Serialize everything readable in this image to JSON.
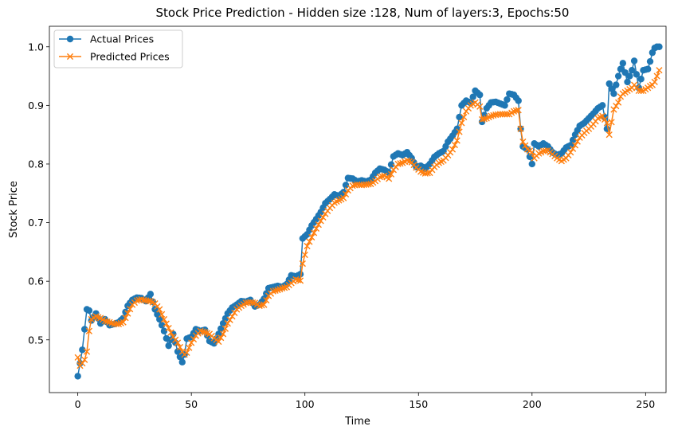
{
  "chart_data": {
    "type": "line",
    "title": "Stock Price Prediction - Hidden size :128, Num of layers:3, Epochs:50",
    "xlabel": "Time",
    "ylabel": "Stock Price",
    "xlim": [
      -12.5,
      259
    ],
    "ylim": [
      0.41,
      1.035
    ],
    "xticks": [
      0,
      50,
      100,
      150,
      200,
      250
    ],
    "yticks": [
      0.5,
      0.6,
      0.7,
      0.8,
      0.9,
      1.0
    ],
    "xtick_labels": [
      "0",
      "50",
      "100",
      "150",
      "200",
      "250"
    ],
    "ytick_labels": [
      "0.5",
      "0.6",
      "0.7",
      "0.8",
      "0.9",
      "1.0"
    ],
    "grid": false,
    "legend_position": "top-left",
    "series": [
      {
        "name": "Actual Prices",
        "color": "#1f77b4",
        "marker": "circle",
        "keypoints": [
          [
            0,
            0.438
          ],
          [
            1,
            0.46
          ],
          [
            2,
            0.483
          ],
          [
            3,
            0.518
          ],
          [
            4,
            0.552
          ],
          [
            5,
            0.55
          ],
          [
            6,
            0.533
          ],
          [
            8,
            0.545
          ],
          [
            10,
            0.528
          ],
          [
            12,
            0.535
          ],
          [
            14,
            0.525
          ],
          [
            16,
            0.527
          ],
          [
            18,
            0.53
          ],
          [
            20,
            0.537
          ],
          [
            22,
            0.558
          ],
          [
            24,
            0.568
          ],
          [
            26,
            0.572
          ],
          [
            28,
            0.571
          ],
          [
            30,
            0.566
          ],
          [
            32,
            0.578
          ],
          [
            34,
            0.552
          ],
          [
            36,
            0.535
          ],
          [
            38,
            0.515
          ],
          [
            40,
            0.49
          ],
          [
            42,
            0.51
          ],
          [
            44,
            0.48
          ],
          [
            46,
            0.462
          ],
          [
            47,
            0.475
          ],
          [
            48,
            0.502
          ],
          [
            50,
            0.505
          ],
          [
            52,
            0.518
          ],
          [
            54,
            0.515
          ],
          [
            56,
            0.517
          ],
          [
            58,
            0.498
          ],
          [
            60,
            0.494
          ],
          [
            62,
            0.51
          ],
          [
            64,
            0.528
          ],
          [
            66,
            0.545
          ],
          [
            68,
            0.555
          ],
          [
            70,
            0.56
          ],
          [
            72,
            0.566
          ],
          [
            74,
            0.565
          ],
          [
            76,
            0.568
          ],
          [
            78,
            0.557
          ],
          [
            80,
            0.56
          ],
          [
            82,
            0.57
          ],
          [
            84,
            0.588
          ],
          [
            86,
            0.59
          ],
          [
            88,
            0.592
          ],
          [
            90,
            0.59
          ],
          [
            92,
            0.595
          ],
          [
            94,
            0.61
          ],
          [
            96,
            0.608
          ],
          [
            98,
            0.612
          ],
          [
            99,
            0.673
          ],
          [
            101,
            0.68
          ],
          [
            103,
            0.695
          ],
          [
            105,
            0.706
          ],
          [
            107,
            0.718
          ],
          [
            109,
            0.733
          ],
          [
            111,
            0.74
          ],
          [
            113,
            0.748
          ],
          [
            115,
            0.745
          ],
          [
            117,
            0.752
          ],
          [
            119,
            0.776
          ],
          [
            121,
            0.775
          ],
          [
            123,
            0.77
          ],
          [
            125,
            0.772
          ],
          [
            127,
            0.77
          ],
          [
            129,
            0.773
          ],
          [
            131,
            0.785
          ],
          [
            133,
            0.792
          ],
          [
            135,
            0.79
          ],
          [
            137,
            0.785
          ],
          [
            139,
            0.813
          ],
          [
            141,
            0.818
          ],
          [
            143,
            0.815
          ],
          [
            145,
            0.82
          ],
          [
            147,
            0.81
          ],
          [
            149,
            0.795
          ],
          [
            151,
            0.797
          ],
          [
            153,
            0.792
          ],
          [
            155,
            0.8
          ],
          [
            157,
            0.812
          ],
          [
            159,
            0.818
          ],
          [
            161,
            0.822
          ],
          [
            163,
            0.838
          ],
          [
            165,
            0.848
          ],
          [
            167,
            0.86
          ],
          [
            169,
            0.9
          ],
          [
            171,
            0.908
          ],
          [
            173,
            0.904
          ],
          [
            175,
            0.925
          ],
          [
            177,
            0.918
          ],
          [
            178,
            0.872
          ],
          [
            180,
            0.895
          ],
          [
            182,
            0.905
          ],
          [
            184,
            0.906
          ],
          [
            186,
            0.903
          ],
          [
            188,
            0.9
          ],
          [
            190,
            0.92
          ],
          [
            192,
            0.918
          ],
          [
            194,
            0.908
          ],
          [
            195,
            0.86
          ],
          [
            196,
            0.83
          ],
          [
            198,
            0.825
          ],
          [
            200,
            0.8
          ],
          [
            201,
            0.835
          ],
          [
            203,
            0.83
          ],
          [
            205,
            0.835
          ],
          [
            207,
            0.83
          ],
          [
            209,
            0.82
          ],
          [
            211,
            0.815
          ],
          [
            213,
            0.818
          ],
          [
            215,
            0.828
          ],
          [
            217,
            0.832
          ],
          [
            219,
            0.85
          ],
          [
            221,
            0.865
          ],
          [
            223,
            0.87
          ],
          [
            225,
            0.878
          ],
          [
            227,
            0.886
          ],
          [
            229,
            0.895
          ],
          [
            231,
            0.9
          ],
          [
            233,
            0.86
          ],
          [
            234,
            0.937
          ],
          [
            236,
            0.92
          ],
          [
            238,
            0.95
          ],
          [
            239,
            0.962
          ],
          [
            240,
            0.972
          ],
          [
            242,
            0.94
          ],
          [
            244,
            0.96
          ],
          [
            245,
            0.976
          ],
          [
            247,
            0.93
          ],
          [
            249,
            0.96
          ],
          [
            251,
            0.962
          ],
          [
            252,
            0.975
          ],
          [
            253,
            0.99
          ],
          [
            254,
            0.998
          ],
          [
            255,
            1.0
          ],
          [
            256,
            1.0
          ]
        ]
      },
      {
        "name": "Predicted Prices",
        "color": "#ff7f0e",
        "marker": "x",
        "keypoints": [
          [
            0,
            0.47
          ],
          [
            1,
            0.456
          ],
          [
            2,
            0.46
          ],
          [
            3,
            0.466
          ],
          [
            4,
            0.48
          ],
          [
            5,
            0.515
          ],
          [
            6,
            0.535
          ],
          [
            8,
            0.54
          ],
          [
            10,
            0.537
          ],
          [
            12,
            0.532
          ],
          [
            14,
            0.53
          ],
          [
            16,
            0.527
          ],
          [
            18,
            0.527
          ],
          [
            20,
            0.53
          ],
          [
            22,
            0.545
          ],
          [
            24,
            0.56
          ],
          [
            26,
            0.567
          ],
          [
            28,
            0.569
          ],
          [
            30,
            0.567
          ],
          [
            32,
            0.566
          ],
          [
            34,
            0.562
          ],
          [
            36,
            0.552
          ],
          [
            38,
            0.535
          ],
          [
            40,
            0.52
          ],
          [
            42,
            0.505
          ],
          [
            44,
            0.495
          ],
          [
            46,
            0.48
          ],
          [
            47,
            0.475
          ],
          [
            48,
            0.478
          ],
          [
            50,
            0.495
          ],
          [
            52,
            0.507
          ],
          [
            54,
            0.515
          ],
          [
            56,
            0.513
          ],
          [
            58,
            0.51
          ],
          [
            60,
            0.503
          ],
          [
            62,
            0.497
          ],
          [
            64,
            0.51
          ],
          [
            66,
            0.528
          ],
          [
            68,
            0.54
          ],
          [
            70,
            0.552
          ],
          [
            72,
            0.558
          ],
          [
            74,
            0.563
          ],
          [
            76,
            0.564
          ],
          [
            78,
            0.563
          ],
          [
            80,
            0.558
          ],
          [
            82,
            0.56
          ],
          [
            84,
            0.575
          ],
          [
            86,
            0.583
          ],
          [
            88,
            0.585
          ],
          [
            90,
            0.588
          ],
          [
            92,
            0.59
          ],
          [
            94,
            0.597
          ],
          [
            96,
            0.603
          ],
          [
            98,
            0.601
          ],
          [
            99,
            0.63
          ],
          [
            101,
            0.66
          ],
          [
            103,
            0.675
          ],
          [
            105,
            0.69
          ],
          [
            107,
            0.703
          ],
          [
            109,
            0.715
          ],
          [
            111,
            0.725
          ],
          [
            113,
            0.734
          ],
          [
            115,
            0.738
          ],
          [
            117,
            0.742
          ],
          [
            119,
            0.755
          ],
          [
            121,
            0.763
          ],
          [
            123,
            0.765
          ],
          [
            125,
            0.764
          ],
          [
            127,
            0.765
          ],
          [
            129,
            0.766
          ],
          [
            131,
            0.771
          ],
          [
            133,
            0.778
          ],
          [
            135,
            0.78
          ],
          [
            137,
            0.775
          ],
          [
            139,
            0.79
          ],
          [
            141,
            0.8
          ],
          [
            143,
            0.802
          ],
          [
            145,
            0.806
          ],
          [
            147,
            0.803
          ],
          [
            149,
            0.794
          ],
          [
            151,
            0.787
          ],
          [
            153,
            0.784
          ],
          [
            155,
            0.785
          ],
          [
            157,
            0.795
          ],
          [
            159,
            0.802
          ],
          [
            161,
            0.806
          ],
          [
            163,
            0.815
          ],
          [
            165,
            0.825
          ],
          [
            167,
            0.84
          ],
          [
            169,
            0.87
          ],
          [
            171,
            0.89
          ],
          [
            173,
            0.9
          ],
          [
            175,
            0.905
          ],
          [
            177,
            0.898
          ],
          [
            178,
            0.876
          ],
          [
            180,
            0.878
          ],
          [
            182,
            0.882
          ],
          [
            184,
            0.884
          ],
          [
            186,
            0.885
          ],
          [
            188,
            0.885
          ],
          [
            190,
            0.885
          ],
          [
            192,
            0.89
          ],
          [
            194,
            0.892
          ],
          [
            195,
            0.86
          ],
          [
            196,
            0.838
          ],
          [
            198,
            0.825
          ],
          [
            200,
            0.82
          ],
          [
            201,
            0.81
          ],
          [
            203,
            0.818
          ],
          [
            205,
            0.822
          ],
          [
            207,
            0.823
          ],
          [
            209,
            0.817
          ],
          [
            211,
            0.81
          ],
          [
            213,
            0.805
          ],
          [
            215,
            0.81
          ],
          [
            217,
            0.82
          ],
          [
            219,
            0.832
          ],
          [
            221,
            0.845
          ],
          [
            223,
            0.853
          ],
          [
            225,
            0.86
          ],
          [
            227,
            0.868
          ],
          [
            229,
            0.878
          ],
          [
            231,
            0.882
          ],
          [
            233,
            0.87
          ],
          [
            234,
            0.85
          ],
          [
            236,
            0.893
          ],
          [
            238,
            0.905
          ],
          [
            239,
            0.915
          ],
          [
            240,
            0.92
          ],
          [
            242,
            0.925
          ],
          [
            244,
            0.93
          ],
          [
            245,
            0.935
          ],
          [
            247,
            0.925
          ],
          [
            249,
            0.925
          ],
          [
            251,
            0.93
          ],
          [
            252,
            0.933
          ],
          [
            253,
            0.935
          ],
          [
            254,
            0.94
          ],
          [
            255,
            0.95
          ],
          [
            256,
            0.96
          ]
        ]
      }
    ]
  }
}
